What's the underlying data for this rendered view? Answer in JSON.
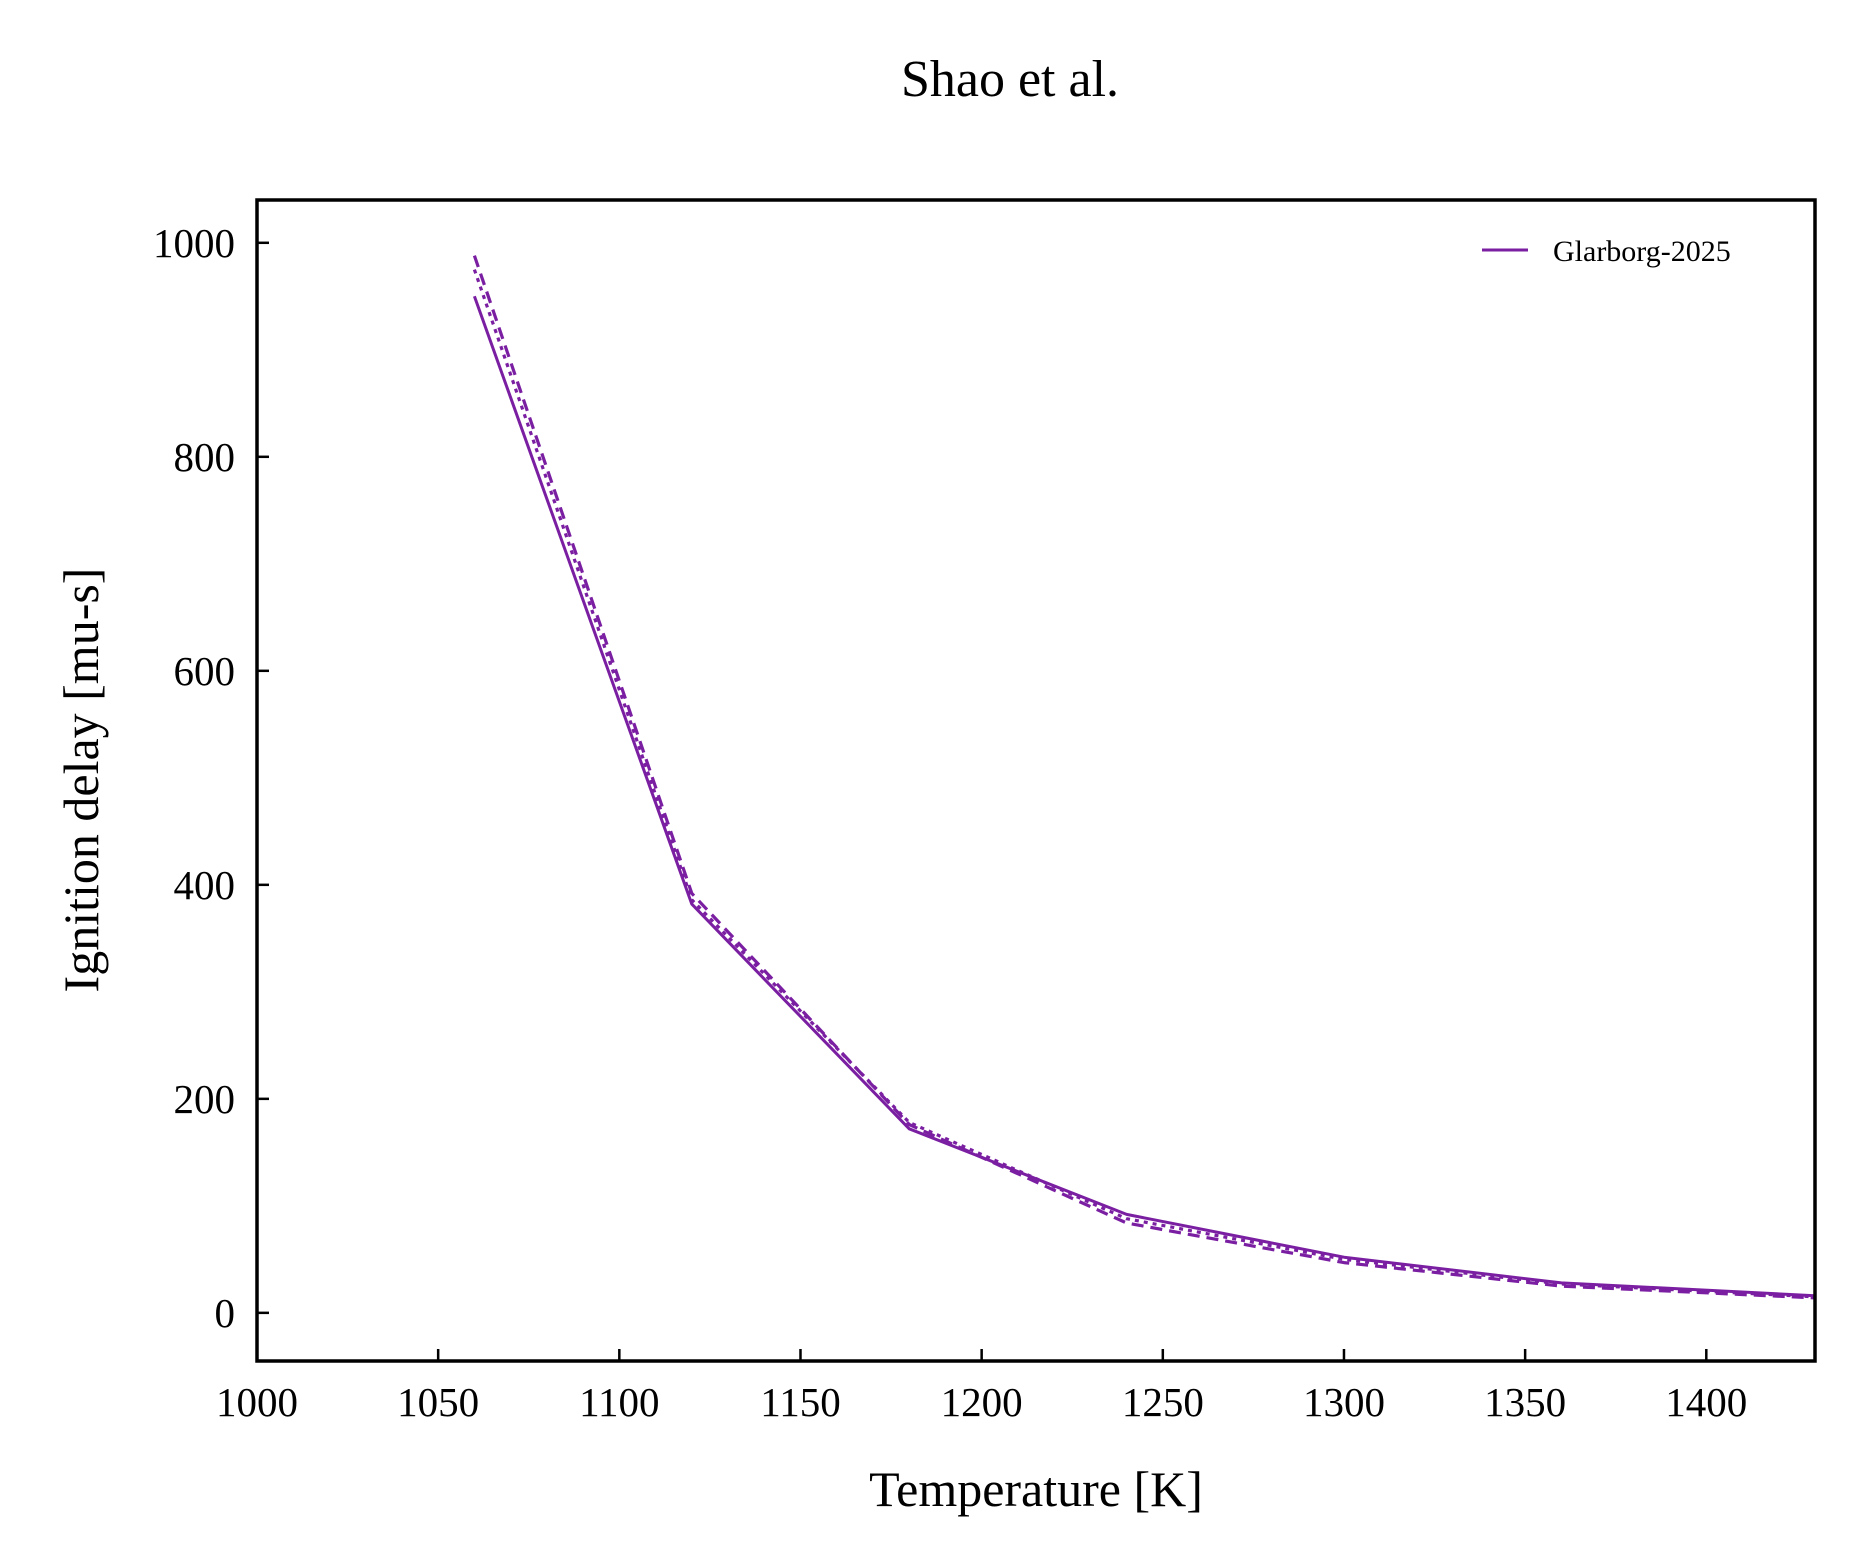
{
  "chart_data": {
    "type": "line",
    "title": "Shao et al.",
    "xlabel": "Temperature [K]",
    "ylabel": "Ignition delay [mu-s]",
    "xlim": [
      1000,
      1430
    ],
    "ylim": [
      -45,
      1040
    ],
    "xticks": [
      1000,
      1050,
      1100,
      1150,
      1200,
      1250,
      1300,
      1350,
      1400
    ],
    "yticks": [
      0,
      200,
      400,
      600,
      800,
      1000
    ],
    "grid": false,
    "legend_position": "top-right",
    "legend": [
      "Glarborg-2025"
    ],
    "color": "#7b1fa2",
    "series": [
      {
        "name": "Glarborg-2025",
        "style": "solid",
        "x": [
          1060,
          1120,
          1180,
          1240,
          1300,
          1360,
          1430
        ],
        "y": [
          950,
          382,
          172,
          92,
          52,
          28,
          16
        ]
      },
      {
        "style": "dashed",
        "x": [
          1060,
          1120,
          1180,
          1240,
          1300,
          1360,
          1430
        ],
        "y": [
          988,
          392,
          176,
          84,
          47,
          25,
          14
        ]
      },
      {
        "style": "dotted",
        "x": [
          1060,
          1120,
          1180,
          1240,
          1300,
          1360,
          1430
        ],
        "y": [
          975,
          386,
          178,
          88,
          50,
          27,
          15
        ]
      }
    ]
  }
}
